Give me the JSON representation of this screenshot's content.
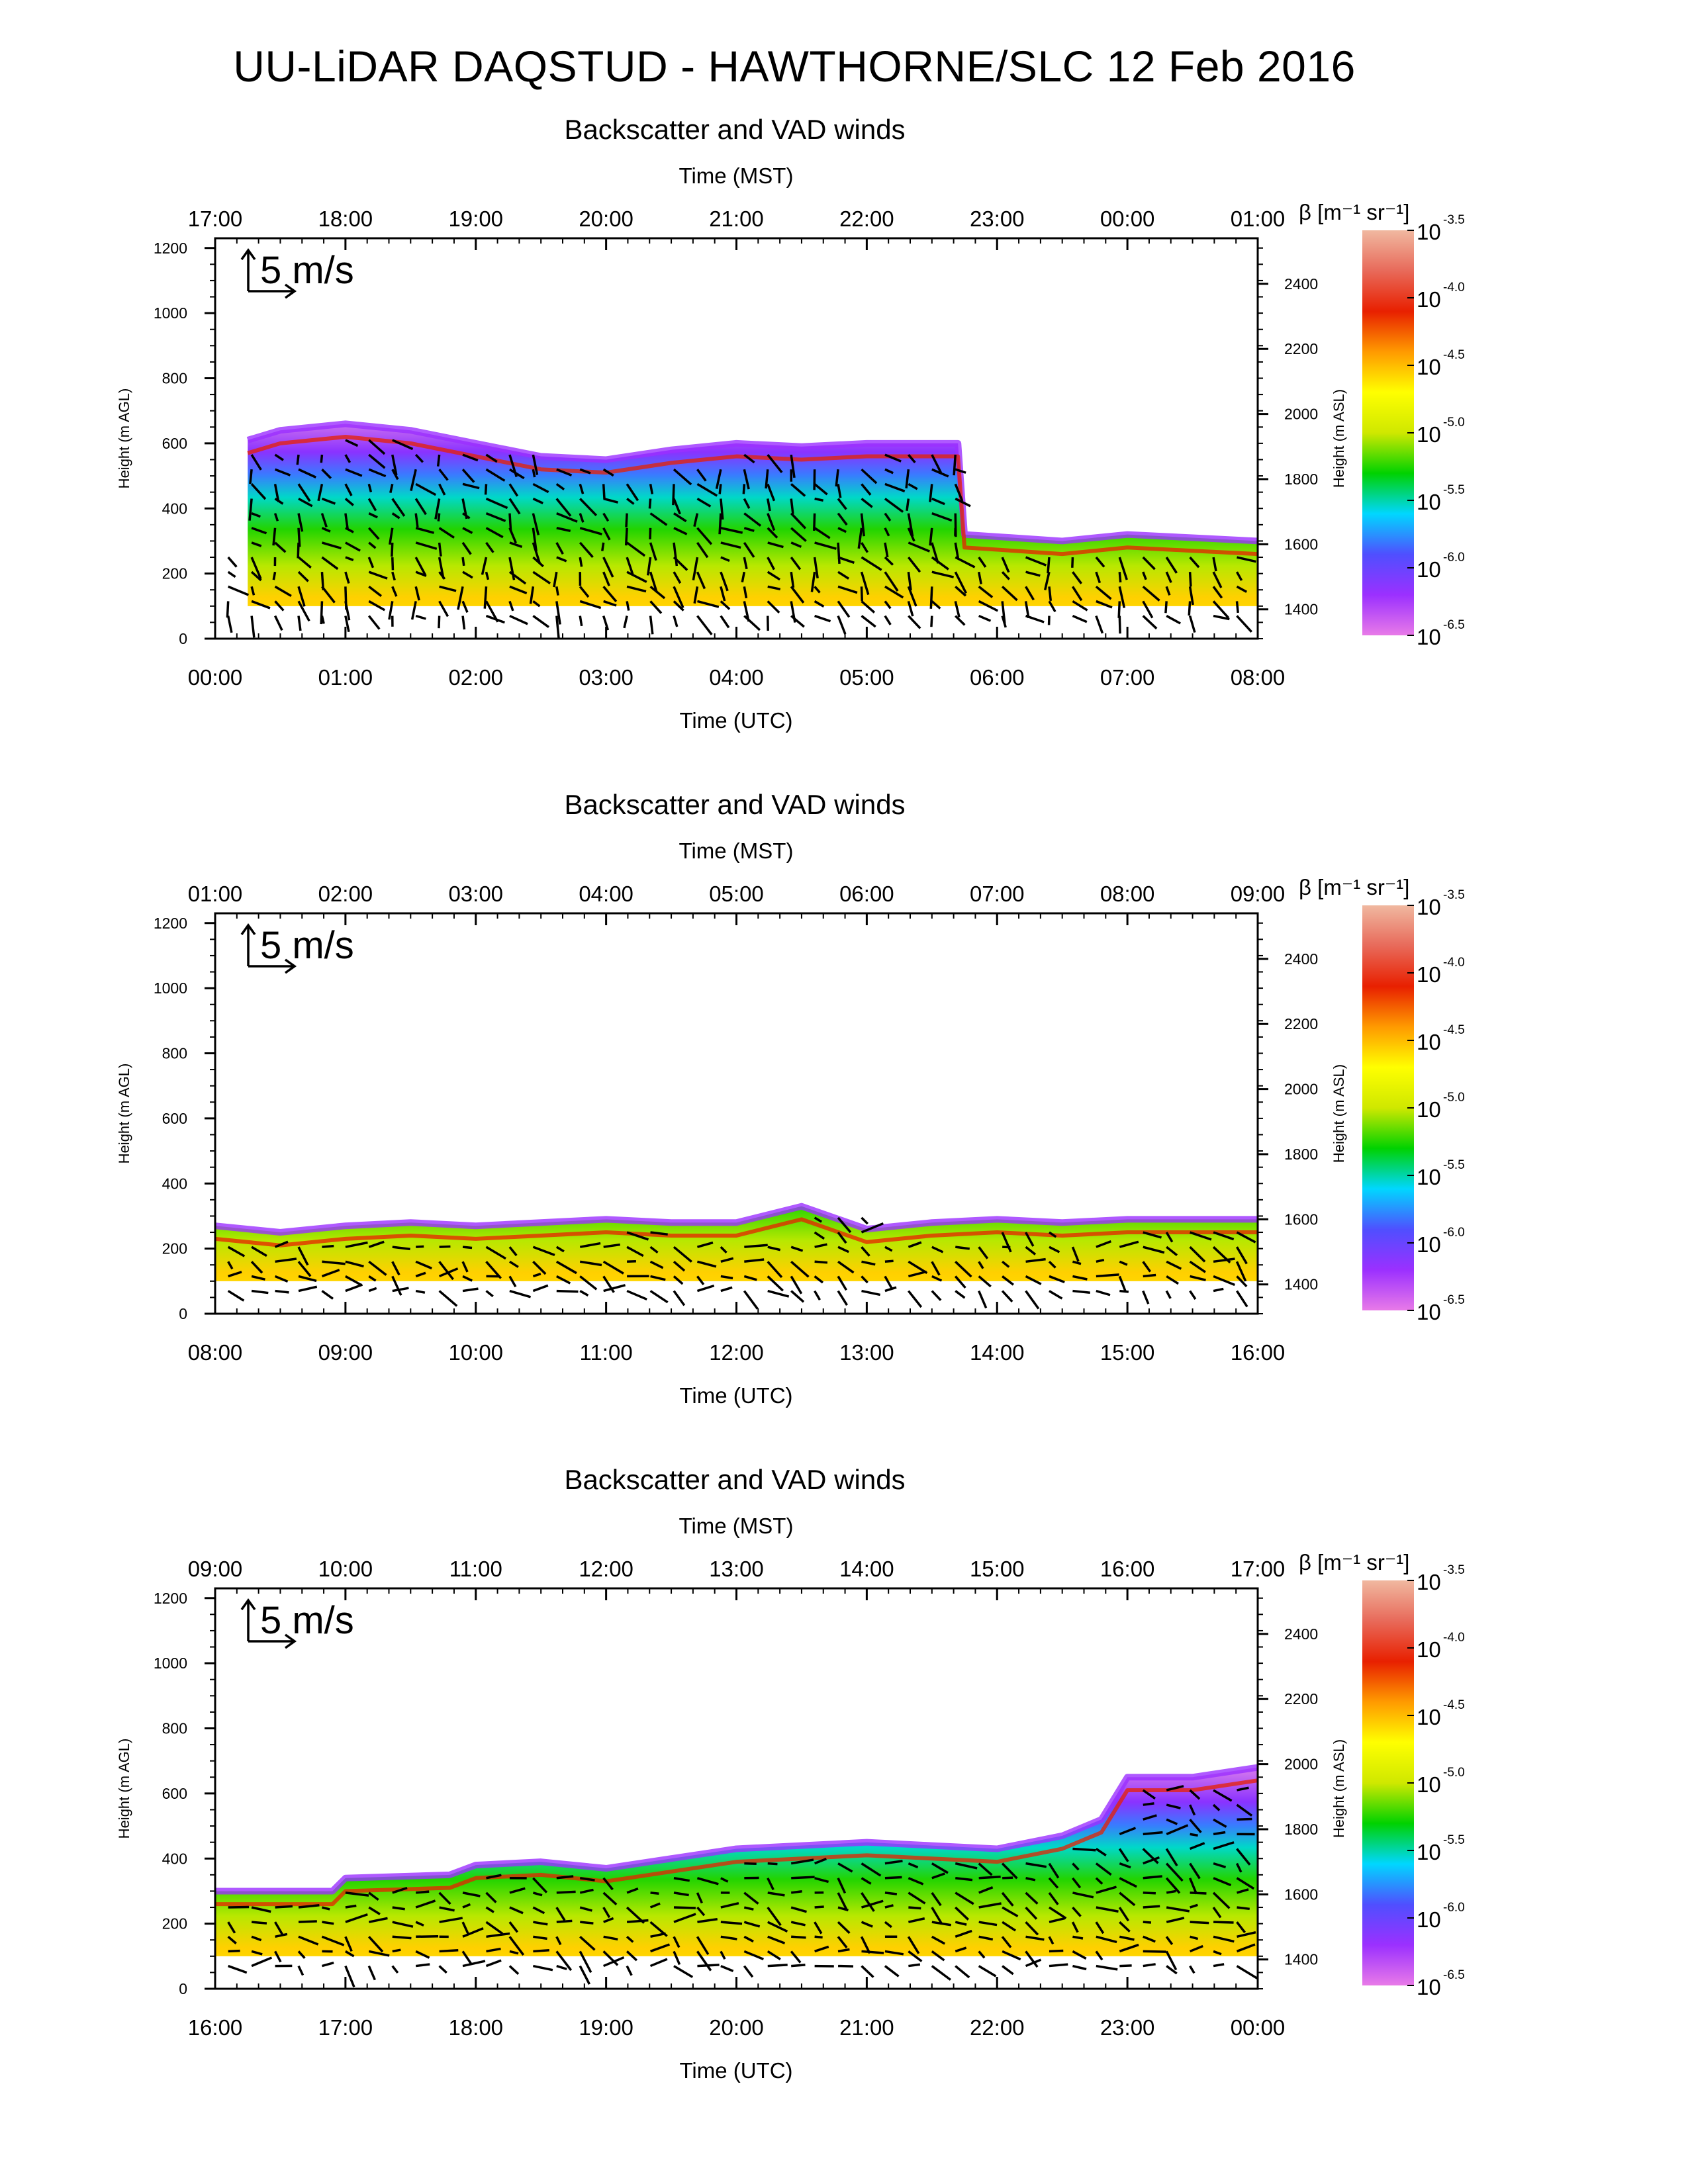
{
  "page_title": "UU-LiDAR DAQSTUD - HAWTHORNE/SLC 12 Feb 2016",
  "colors": {
    "axis": "#000000",
    "colormap": [
      "#e87ae8",
      "#9b30ff",
      "#4f4fff",
      "#00d7ff",
      "#00d200",
      "#cfe800",
      "#ffff00",
      "#ff9a00",
      "#e82000",
      "#e86a5a",
      "#f0b8a0"
    ],
    "wind_arrow": "#000000"
  },
  "chart_data": [
    {
      "type": "heatmap",
      "title": "Backscatter and VAD winds",
      "top_axis_label": "Time (MST)",
      "top_ticks": [
        "17:00",
        "18:00",
        "19:00",
        "20:00",
        "21:00",
        "22:00",
        "23:00",
        "00:00",
        "01:00"
      ],
      "xlabel": "Time (UTC)",
      "bottom_ticks": [
        "00:00",
        "01:00",
        "02:00",
        "03:00",
        "04:00",
        "05:00",
        "06:00",
        "07:00",
        "08:00"
      ],
      "ylabel": "Height (m AGL)",
      "ylim": [
        0,
        1230
      ],
      "y_ticks": [
        "0",
        "200",
        "400",
        "600",
        "800",
        "1000",
        "1200"
      ],
      "y2label": "Height (m ASL)",
      "y2_ticks": [
        "1400",
        "1600",
        "1800",
        "2000",
        "2200",
        "2400"
      ],
      "scale_label": "5 m/s",
      "colorbar": {
        "title": "β [m⁻¹ sr⁻¹]",
        "labels": [
          {
            "base": "10",
            "exp": "-3.5"
          },
          {
            "base": "10",
            "exp": "-4.0"
          },
          {
            "base": "10",
            "exp": "-4.5"
          },
          {
            "base": "10",
            "exp": "-5.0"
          },
          {
            "base": "10",
            "exp": "-5.5"
          },
          {
            "base": "10",
            "exp": "-6.0"
          },
          {
            "base": "10",
            "exp": "-6.5"
          }
        ]
      },
      "aerosol_layer_top_m": [
        [
          0.25,
          610
        ],
        [
          0.5,
          640
        ],
        [
          1,
          660
        ],
        [
          1.5,
          640
        ],
        [
          2,
          600
        ],
        [
          2.5,
          560
        ],
        [
          3,
          550
        ],
        [
          3.5,
          580
        ],
        [
          4,
          600
        ],
        [
          4.5,
          590
        ],
        [
          5,
          600
        ],
        [
          5.7,
          600
        ],
        [
          5.75,
          320
        ],
        [
          6.5,
          300
        ],
        [
          7,
          320
        ],
        [
          7.5,
          310
        ],
        [
          8,
          300
        ]
      ],
      "layer_top_time_hours_utc": [
        0.25,
        0.5,
        1,
        1.5,
        2,
        2.5,
        3,
        3.5,
        4,
        4.5,
        5,
        5.7,
        5.75,
        6.5,
        7,
        7.5,
        8
      ]
    },
    {
      "type": "heatmap",
      "title": "Backscatter and VAD winds",
      "top_axis_label": "Time (MST)",
      "top_ticks": [
        "01:00",
        "02:00",
        "03:00",
        "04:00",
        "05:00",
        "06:00",
        "07:00",
        "08:00",
        "09:00"
      ],
      "xlabel": "Time (UTC)",
      "bottom_ticks": [
        "08:00",
        "09:00",
        "10:00",
        "11:00",
        "12:00",
        "13:00",
        "14:00",
        "15:00",
        "16:00"
      ],
      "ylabel": "Height (m AGL)",
      "ylim": [
        0,
        1230
      ],
      "y_ticks": [
        "0",
        "200",
        "400",
        "600",
        "800",
        "1000",
        "1200"
      ],
      "y2label": "Height (m ASL)",
      "y2_ticks": [
        "1400",
        "1600",
        "1800",
        "2000",
        "2200",
        "2400"
      ],
      "scale_label": "5 m/s",
      "colorbar": {
        "title": "β [m⁻¹ sr⁻¹]",
        "labels": [
          {
            "base": "10",
            "exp": "-3.5"
          },
          {
            "base": "10",
            "exp": "-4.0"
          },
          {
            "base": "10",
            "exp": "-4.5"
          },
          {
            "base": "10",
            "exp": "-5.0"
          },
          {
            "base": "10",
            "exp": "-5.5"
          },
          {
            "base": "10",
            "exp": "-6.0"
          },
          {
            "base": "10",
            "exp": "-6.5"
          }
        ]
      },
      "aerosol_layer_top_m": [
        [
          8,
          270
        ],
        [
          8.5,
          250
        ],
        [
          9,
          270
        ],
        [
          9.5,
          280
        ],
        [
          10,
          270
        ],
        [
          10.5,
          280
        ],
        [
          11,
          290
        ],
        [
          11.5,
          280
        ],
        [
          12,
          280
        ],
        [
          12.5,
          330
        ],
        [
          13,
          260
        ],
        [
          13.5,
          280
        ],
        [
          14,
          290
        ],
        [
          14.5,
          280
        ],
        [
          15,
          290
        ],
        [
          15.5,
          290
        ],
        [
          16,
          290
        ]
      ],
      "layer_top_time_hours_utc": [
        8,
        8.5,
        9,
        9.5,
        10,
        10.5,
        11,
        11.5,
        12,
        12.5,
        13,
        13.5,
        14,
        14.5,
        15,
        15.5,
        16
      ]
    },
    {
      "type": "heatmap",
      "title": "Backscatter and VAD winds",
      "top_axis_label": "Time (MST)",
      "top_ticks": [
        "09:00",
        "10:00",
        "11:00",
        "12:00",
        "13:00",
        "14:00",
        "15:00",
        "16:00",
        "17:00"
      ],
      "xlabel": "Time (UTC)",
      "bottom_ticks": [
        "16:00",
        "17:00",
        "18:00",
        "19:00",
        "20:00",
        "21:00",
        "22:00",
        "23:00",
        "00:00"
      ],
      "ylabel": "Height (m AGL)",
      "ylim": [
        0,
        1230
      ],
      "y_ticks": [
        "0",
        "200",
        "400",
        "600",
        "800",
        "1000",
        "1200"
      ],
      "y2label": "Height (m ASL)",
      "y2_ticks": [
        "1400",
        "1600",
        "1800",
        "2000",
        "2200",
        "2400"
      ],
      "scale_label": "5 m/s",
      "colorbar": {
        "title": "β [m⁻¹ sr⁻¹]",
        "labels": [
          {
            "base": "10",
            "exp": "-3.5"
          },
          {
            "base": "10",
            "exp": "-4.0"
          },
          {
            "base": "10",
            "exp": "-4.5"
          },
          {
            "base": "10",
            "exp": "-5.0"
          },
          {
            "base": "10",
            "exp": "-5.5"
          },
          {
            "base": "10",
            "exp": "-6.0"
          },
          {
            "base": "10",
            "exp": "-6.5"
          }
        ]
      },
      "aerosol_layer_top_m": [
        [
          16,
          300
        ],
        [
          16.9,
          300
        ],
        [
          17,
          340
        ],
        [
          17.8,
          350
        ],
        [
          18,
          380
        ],
        [
          18.5,
          390
        ],
        [
          19,
          370
        ],
        [
          19.5,
          400
        ],
        [
          20,
          430
        ],
        [
          20.5,
          440
        ],
        [
          21,
          450
        ],
        [
          21.5,
          440
        ],
        [
          22,
          430
        ],
        [
          22.5,
          470
        ],
        [
          22.8,
          520
        ],
        [
          23,
          650
        ],
        [
          23.5,
          650
        ],
        [
          24,
          680
        ]
      ],
      "layer_top_time_hours_utc": [
        16,
        16.9,
        17,
        17.8,
        18,
        18.5,
        19,
        19.5,
        20,
        20.5,
        21,
        21.5,
        22,
        22.5,
        22.8,
        23,
        23.5,
        24
      ]
    }
  ]
}
